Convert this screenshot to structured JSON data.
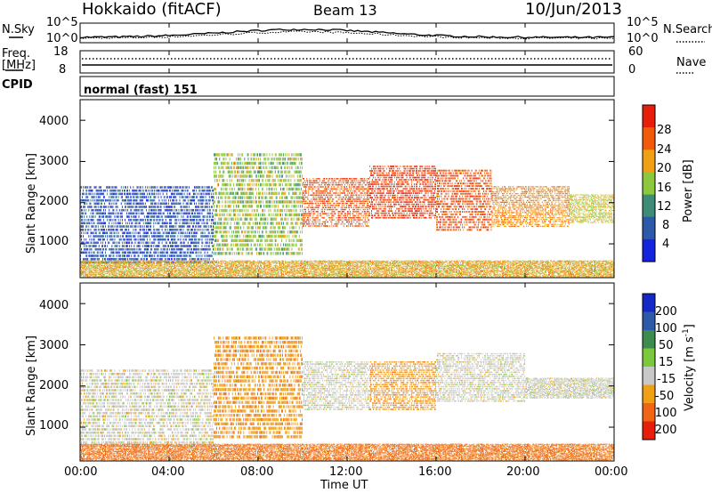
{
  "header": {
    "station": "Hokkaido (fitACF)",
    "beam": "Beam 13",
    "date": "10/Jun/2013"
  },
  "summary_panels": {
    "nsky_label": "N.Sky",
    "nsearch_label": "N.Search",
    "count_ticks_left": [
      "10^5",
      "10^0"
    ],
    "count_ticks_right": [
      "10^5",
      "10^0"
    ],
    "freq_label_line1": "Freq.",
    "freq_label_line2": "[MHz]",
    "freq_ticks": [
      "18",
      "8"
    ],
    "nave_label": "Nave",
    "nave_ticks": [
      "60",
      "0"
    ],
    "cpid_label": "CPID",
    "cpid_value": "normal (fast) 151"
  },
  "x_axis": {
    "label": "Time UT",
    "ticks": [
      "00:00",
      "04:00",
      "08:00",
      "12:00",
      "16:00",
      "20:00",
      "00:00"
    ]
  },
  "chart_data": [
    {
      "type": "heatmap",
      "name": "power",
      "ylabel": "Slant Range [km]",
      "xlabel": "Time UT",
      "x_range_hours": [
        0,
        24
      ],
      "ylim": [
        180,
        4500
      ],
      "y_ticks": [
        1000,
        2000,
        3000,
        4000
      ],
      "colorbar_label": "Power [dB]",
      "colorbar_ticks": [
        4,
        8,
        12,
        16,
        20,
        24,
        28
      ],
      "colorbar_range": [
        0,
        32
      ],
      "colors": [
        "#1424dc",
        "#2c5aa8",
        "#3c8c78",
        "#8cc83c",
        "#f0a014",
        "#f05a0a",
        "#e61e0a"
      ],
      "regions": [
        {
          "t0": 0.0,
          "t1": 6.0,
          "r0": 500,
          "r1": 2400,
          "level": 6
        },
        {
          "t0": 6.0,
          "t1": 10.0,
          "r0": 700,
          "r1": 3200,
          "level": 16
        },
        {
          "t0": 10.0,
          "t1": 13.0,
          "r0": 1400,
          "r1": 2600,
          "level": 26
        },
        {
          "t0": 13.0,
          "t1": 16.0,
          "r0": 1600,
          "r1": 2900,
          "level": 28
        },
        {
          "t0": 16.0,
          "t1": 18.5,
          "r0": 1300,
          "r1": 2800,
          "level": 26
        },
        {
          "t0": 18.5,
          "t1": 22.0,
          "r0": 1400,
          "r1": 2400,
          "level": 22
        },
        {
          "t0": 22.0,
          "t1": 24.0,
          "r0": 1500,
          "r1": 2200,
          "level": 18
        },
        {
          "t0": 0.0,
          "t1": 24.0,
          "r0": 200,
          "r1": 600,
          "level": 20
        }
      ]
    },
    {
      "type": "heatmap",
      "name": "velocity",
      "ylabel": "Slant Range [km]",
      "xlabel": "Time UT",
      "x_range_hours": [
        0,
        24
      ],
      "ylim": [
        180,
        4500
      ],
      "y_ticks": [
        1000,
        2000,
        3000,
        4000
      ],
      "colorbar_label": "Velocity [m s^-1]",
      "colorbar_ticks": [
        200,
        100,
        50,
        15,
        -15,
        -50,
        -100,
        -200
      ],
      "colors": [
        "#1428c8",
        "#2c5aa8",
        "#3c8c50",
        "#7cc83c",
        "#c8c8c8",
        "#f0a014",
        "#f06414",
        "#e61e0a"
      ],
      "regions": [
        {
          "t0": 0.0,
          "t1": 6.0,
          "r0": 500,
          "r1": 2400,
          "velocity": 0
        },
        {
          "t0": 6.0,
          "t1": 10.0,
          "r0": 700,
          "r1": 3200,
          "velocity": -40
        },
        {
          "t0": 10.0,
          "t1": 13.0,
          "r0": 1400,
          "r1": 2600,
          "velocity": 0
        },
        {
          "t0": 13.0,
          "t1": 16.0,
          "r0": 1400,
          "r1": 2600,
          "velocity": -40
        },
        {
          "t0": 16.0,
          "t1": 20.0,
          "r0": 1600,
          "r1": 2800,
          "velocity": 0
        },
        {
          "t0": 20.0,
          "t1": 24.0,
          "r0": 1700,
          "r1": 2200,
          "velocity": 0
        },
        {
          "t0": 0.0,
          "t1": 24.0,
          "r0": 200,
          "r1": 600,
          "velocity": -60
        }
      ]
    }
  ]
}
